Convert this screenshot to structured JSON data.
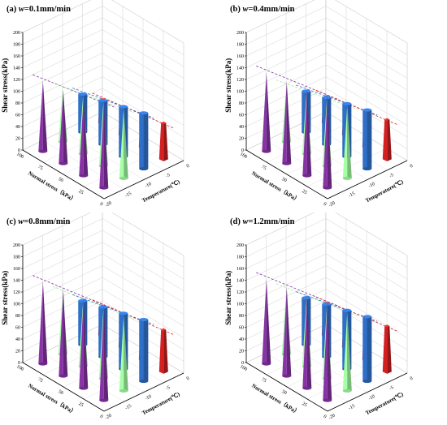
{
  "panels": [
    {
      "label": "(a)",
      "rate": "=0.1mm/min"
    },
    {
      "label": "(b)",
      "rate": "=0.4mm/min"
    },
    {
      "label": "(c)",
      "rate": "=0.8mm/min"
    },
    {
      "label": "(d)",
      "rate": "=1.2mm/min"
    }
  ],
  "rate_symbol": "w",
  "chart_data": [
    {
      "type": "bar3d-cone",
      "title": "(a) w=0.1mm/min",
      "zlabel": "Shear stress(kPa)",
      "xlabel": "Normal stress（kPa）",
      "ylabel": "Temperature(℃)",
      "zlim": [
        0,
        200
      ],
      "zticks": [
        "0",
        "20",
        "40",
        "60",
        "80",
        "100",
        "120",
        "140",
        "160",
        "180",
        "200"
      ],
      "normal_stress": [
        "100",
        "75",
        "50",
        "25",
        "0"
      ],
      "temperature": [
        "-20",
        "-15",
        "-10",
        "-5",
        "0"
      ],
      "temperature_ticks": [
        "-20",
        "-15",
        "-10",
        "-5",
        "0"
      ],
      "colors": [
        "#7d2f9a",
        "#9af09a",
        "#2f6fc8",
        "#d42020"
      ],
      "series": [
        {
          "temperature": "-20",
          "values": [
            120,
            125,
            135,
            145
          ]
        },
        {
          "temperature": "-15",
          "values": [
            90,
            100,
            110,
            120
          ]
        },
        {
          "temperature": "-10",
          "values": [
            65,
            75,
            85,
            95
          ]
        },
        {
          "temperature": "-5",
          "values": [
            40,
            48,
            55,
            62
          ]
        }
      ]
    },
    {
      "type": "bar3d-cone",
      "title": "(b) w=0.4mm/min",
      "zlabel": "Shear stress(kPa)",
      "xlabel": "Normal stress（kPa）",
      "ylabel": "Temperature(℃)",
      "zlim": [
        0,
        200
      ],
      "zticks": [
        "0",
        "20",
        "40",
        "60",
        "80",
        "100",
        "120",
        "140",
        "160",
        "180",
        "200"
      ],
      "normal_stress": [
        "100",
        "75",
        "50",
        "25",
        "0"
      ],
      "temperature": [
        "-20",
        "-15",
        "-10",
        "-5",
        "0"
      ],
      "temperature_ticks": [
        "-20",
        "-15",
        "-10",
        "-5",
        "0"
      ],
      "colors": [
        "#7d2f9a",
        "#9af09a",
        "#2f6fc8",
        "#d42020"
      ],
      "series": [
        {
          "temperature": "-20",
          "values": [
            135,
            140,
            148,
            158
          ]
        },
        {
          "temperature": "-15",
          "values": [
            95,
            105,
            115,
            125
          ]
        },
        {
          "temperature": "-10",
          "values": [
            70,
            80,
            90,
            100
          ]
        },
        {
          "temperature": "-5",
          "values": [
            45,
            52,
            60,
            68
          ]
        }
      ]
    },
    {
      "type": "bar3d-cone",
      "title": "(c) w=0.8mm/min",
      "zlabel": "Shear stress(kPa)",
      "xlabel": "Normal stress（kPa）",
      "ylabel": "Temperature(℃)",
      "zlim": [
        0,
        200
      ],
      "zticks": [
        "0",
        "20",
        "40",
        "60",
        "80",
        "100",
        "120",
        "140",
        "160",
        "180",
        "200"
      ],
      "normal_stress": [
        "100",
        "75",
        "50",
        "25",
        "0"
      ],
      "temperature": [
        "-20",
        "-15",
        "-10",
        "-5",
        "0"
      ],
      "temperature_ticks": [
        "-20",
        "-15",
        "-10",
        "-5",
        "0"
      ],
      "colors": [
        "#7d2f9a",
        "#9af09a",
        "#2f6fc8",
        "#d42020"
      ],
      "series": [
        {
          "temperature": "-20",
          "values": [
            140,
            148,
            155,
            162
          ]
        },
        {
          "temperature": "-15",
          "values": [
            105,
            112,
            120,
            130
          ]
        },
        {
          "temperature": "-10",
          "values": [
            75,
            85,
            95,
            105
          ]
        },
        {
          "temperature": "-5",
          "values": [
            50,
            58,
            65,
            72
          ]
        }
      ]
    },
    {
      "type": "bar3d-cone",
      "title": "(d) w=1.2mm/min",
      "zlabel": "Shear stress(kPa)",
      "xlabel": "Normal stress（kPa）",
      "ylabel": "Temperature(℃)",
      "zlim": [
        0,
        200
      ],
      "zticks": [
        "0",
        "20",
        "40",
        "60",
        "80",
        "100",
        "120",
        "140",
        "160",
        "180",
        "200"
      ],
      "normal_stress": [
        "100",
        "75",
        "50",
        "25",
        "0"
      ],
      "temperature": [
        "-20",
        "-15",
        "-10",
        "-5",
        "0"
      ],
      "temperature_ticks": [
        "-20",
        "-15",
        "-10",
        "-5",
        "0"
      ],
      "colors": [
        "#7d2f9a",
        "#9af09a",
        "#2f6fc8",
        "#d42020"
      ],
      "series": [
        {
          "temperature": "-20",
          "values": [
            145,
            152,
            160,
            168
          ]
        },
        {
          "temperature": "-15",
          "values": [
            110,
            118,
            125,
            135
          ]
        },
        {
          "temperature": "-10",
          "values": [
            80,
            90,
            100,
            110
          ]
        },
        {
          "temperature": "-5",
          "values": [
            55,
            62,
            70,
            78
          ]
        }
      ]
    }
  ]
}
